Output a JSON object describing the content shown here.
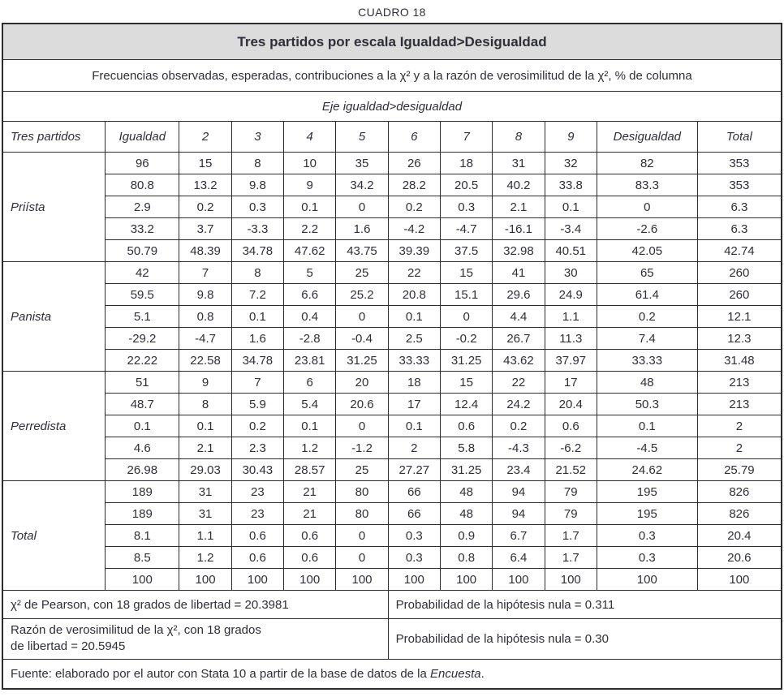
{
  "caption": "CUADRO 18",
  "table": {
    "title": "Tres partidos por escala Igualdad>Desigualdad",
    "subtitle": "Frecuencias observadas, esperadas, contribuciones a la χ² y a la razón de verosimilitud de la χ², % de columna",
    "axis_label": "Eje igualdad>desigualdad",
    "columns": [
      "Tres partidos",
      "Igualdad",
      "2",
      "3",
      "4",
      "5",
      "6",
      "7",
      "8",
      "9",
      "Desigualdad",
      "Total"
    ],
    "row_measures": [
      "observada",
      "esperada",
      "contribucion_chi2",
      "contribucion_razon_verosimilitud",
      "pct_columna"
    ],
    "groups": [
      {
        "label": "Priísta",
        "rows": [
          [
            "96",
            "15",
            "8",
            "10",
            "35",
            "26",
            "18",
            "31",
            "32",
            "82",
            "353"
          ],
          [
            "80.8",
            "13.2",
            "9.8",
            "9",
            "34.2",
            "28.2",
            "20.5",
            "40.2",
            "33.8",
            "83.3",
            "353"
          ],
          [
            "2.9",
            "0.2",
            "0.3",
            "0.1",
            "0",
            "0.2",
            "0.3",
            "2.1",
            "0.1",
            "0",
            "6.3"
          ],
          [
            "33.2",
            "3.7",
            "-3.3",
            "2.2",
            "1.6",
            "-4.2",
            "-4.7",
            "-16.1",
            "-3.4",
            "-2.6",
            "6.3"
          ],
          [
            "50.79",
            "48.39",
            "34.78",
            "47.62",
            "43.75",
            "39.39",
            "37.5",
            "32.98",
            "40.51",
            "42.05",
            "42.74"
          ]
        ]
      },
      {
        "label": "Panista",
        "rows": [
          [
            "42",
            "7",
            "8",
            "5",
            "25",
            "22",
            "15",
            "41",
            "30",
            "65",
            "260"
          ],
          [
            "59.5",
            "9.8",
            "7.2",
            "6.6",
            "25.2",
            "20.8",
            "15.1",
            "29.6",
            "24.9",
            "61.4",
            "260"
          ],
          [
            "5.1",
            "0.8",
            "0.1",
            "0.4",
            "0",
            "0.1",
            "0",
            "4.4",
            "1.1",
            "0.2",
            "12.1"
          ],
          [
            "-29.2",
            "-4.7",
            "1.6",
            "-2.8",
            "-0.4",
            "2.5",
            "-0.2",
            "26.7",
            "11.3",
            "7.4",
            "12.3"
          ],
          [
            "22.22",
            "22.58",
            "34.78",
            "23.81",
            "31.25",
            "33.33",
            "31.25",
            "43.62",
            "37.97",
            "33.33",
            "31.48"
          ]
        ]
      },
      {
        "label": "Perredista",
        "rows": [
          [
            "51",
            "9",
            "7",
            "6",
            "20",
            "18",
            "15",
            "22",
            "17",
            "48",
            "213"
          ],
          [
            "48.7",
            "8",
            "5.9",
            "5.4",
            "20.6",
            "17",
            "12.4",
            "24.2",
            "20.4",
            "50.3",
            "213"
          ],
          [
            "0.1",
            "0.1",
            "0.2",
            "0.1",
            "0",
            "0.1",
            "0.6",
            "0.2",
            "0.6",
            "0.1",
            "2"
          ],
          [
            "4.6",
            "2.1",
            "2.3",
            "1.2",
            "-1.2",
            "2",
            "5.8",
            "-4.3",
            "-6.2",
            "-4.5",
            "2"
          ],
          [
            "26.98",
            "29.03",
            "30.43",
            "28.57",
            "25",
            "27.27",
            "31.25",
            "23.4",
            "21.52",
            "24.62",
            "25.79"
          ]
        ]
      },
      {
        "label": "Total",
        "rows": [
          [
            "189",
            "31",
            "23",
            "21",
            "80",
            "66",
            "48",
            "94",
            "79",
            "195",
            "826"
          ],
          [
            "189",
            "31",
            "23",
            "21",
            "80",
            "66",
            "48",
            "94",
            "79",
            "195",
            "826"
          ],
          [
            "8.1",
            "1.1",
            "0.6",
            "0.6",
            "0",
            "0.3",
            "0.9",
            "6.7",
            "1.7",
            "0.3",
            "20.4"
          ],
          [
            "8.5",
            "1.2",
            "0.6",
            "0.6",
            "0",
            "0.3",
            "0.8",
            "6.4",
            "1.7",
            "0.3",
            "20.6"
          ],
          [
            "100",
            "100",
            "100",
            "100",
            "100",
            "100",
            "100",
            "100",
            "100",
            "100",
            "100"
          ]
        ]
      }
    ],
    "stats": [
      {
        "left": "χ² de Pearson, con 18 grados de libertad = 20.3981",
        "right": "Probabilidad de la hipótesis nula = 0.311"
      },
      {
        "left": "Razón de verosimilitud de la χ², con 18 grados\nde libertad = 20.5945",
        "right": "Probabilidad de la hipótesis nula = 0.30"
      }
    ],
    "source": {
      "prefix": "Fuente: elaborado por el autor con Stata 10 a partir de la base de datos de la ",
      "work": "Encuesta",
      "suffix": "."
    }
  }
}
